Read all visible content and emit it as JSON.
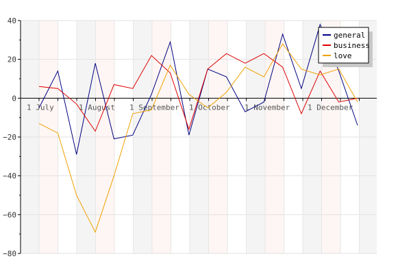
{
  "chart_data": {
    "type": "line",
    "title": "",
    "xlabel": "",
    "ylabel": "",
    "ylim": [
      -80,
      40
    ],
    "y_ticks": [
      40,
      20,
      0,
      -20,
      -40,
      -60,
      -80
    ],
    "grid": true,
    "legend_position": "top-right",
    "x_month_labels": [
      "1 July",
      "1 August",
      "1 September",
      "1 October",
      "1 November",
      "1 December"
    ],
    "points": 18,
    "series": [
      {
        "name": "general",
        "color": "#000080",
        "values": [
          -5,
          14,
          -29,
          18,
          -21,
          -19,
          2,
          29,
          -19,
          15,
          11,
          -7,
          -2,
          33,
          5,
          38,
          14,
          -14
        ]
      },
      {
        "name": "business",
        "color": "#dd0000",
        "values": [
          6,
          5,
          -3,
          -17,
          7,
          5,
          22,
          13,
          -16,
          15,
          23,
          18,
          23,
          16,
          -8,
          14,
          -2,
          0
        ]
      },
      {
        "name": "love",
        "color": "#f0a000",
        "values": [
          -13,
          -18,
          -50,
          -69,
          -40,
          -8,
          -6,
          17,
          2,
          -5,
          3,
          16,
          11,
          28,
          15,
          12,
          15,
          -2
        ]
      }
    ]
  }
}
